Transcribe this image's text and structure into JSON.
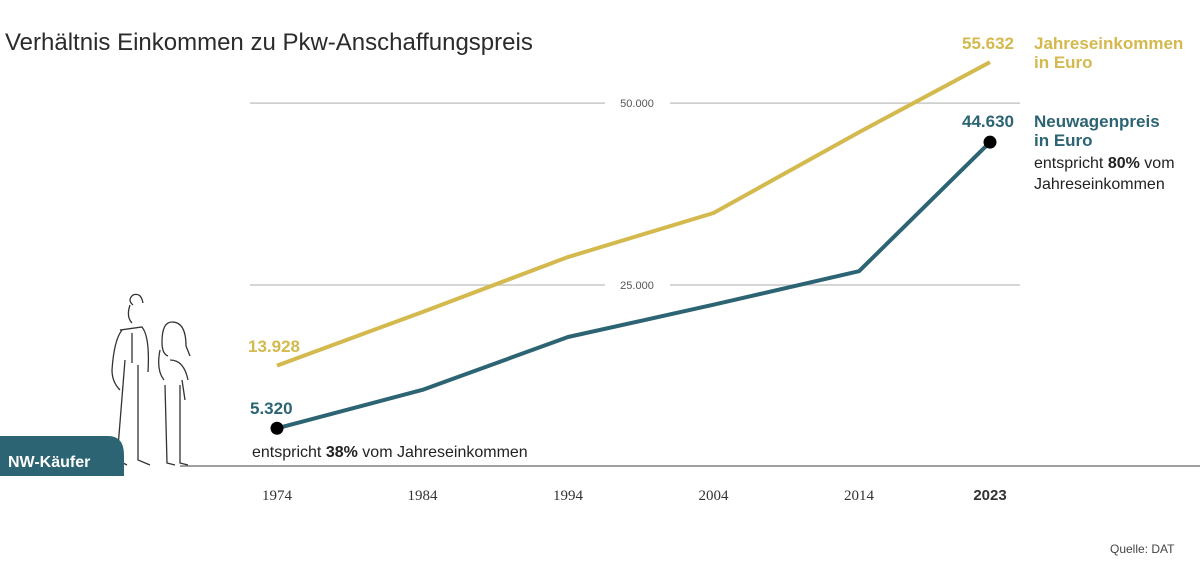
{
  "colors": {
    "income": "#d4b94e",
    "price": "#2c6473",
    "grid": "#c8c8c8",
    "axis": "#555555"
  },
  "chart_data": {
    "type": "line",
    "title": "Verhältnis Einkommen zu Pkw-Anschaffungspreis",
    "x": [
      1974,
      1984,
      1994,
      2004,
      2014,
      2023
    ],
    "x_tick_labels": [
      "1974",
      "1984",
      "1994",
      "2004",
      "2014",
      "2023"
    ],
    "y_gridlines": [
      {
        "value": 25000,
        "label": "25.000"
      },
      {
        "value": 50000,
        "label": "50.000"
      }
    ],
    "ylim": [
      0,
      60000
    ],
    "series": [
      {
        "name": "Jahreseinkommen in Euro",
        "name_line1": "Jahreseinkommen",
        "name_line2": "in Euro",
        "values": [
          13928,
          21300,
          28850,
          34900,
          46000,
          55632
        ],
        "start_label": "13.928",
        "end_label": "55.632"
      },
      {
        "name": "Neuwagenpreis in Euro",
        "name_line1": "Neuwagenpreis",
        "name_line2": "in Euro",
        "values": [
          5320,
          10600,
          17860,
          22300,
          26900,
          44630
        ],
        "start_label": "5.320",
        "end_label": "44.630"
      }
    ],
    "annotations": {
      "start": {
        "pre": "entspricht ",
        "bold": "38%",
        "post": " vom Jahreseinkommen"
      },
      "end": {
        "pre": "entspricht ",
        "bold": "80%",
        "post": " vom",
        "line2": "Jahreseinkommen"
      }
    },
    "badge": "NW-Käufer",
    "source": "Quelle: DAT"
  }
}
